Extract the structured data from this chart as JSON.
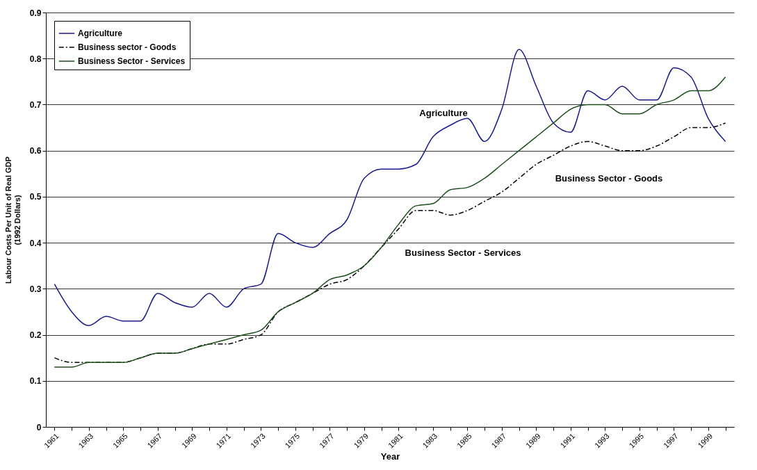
{
  "chart_data": {
    "type": "line",
    "xlabel": "Year",
    "ylabel": "Labour Costs Per Unit of Real GDP\n(1992 Dollars)",
    "categories": [
      "1961",
      null,
      "1963",
      null,
      "1965",
      null,
      "1967",
      null,
      "1969",
      null,
      "1971",
      null,
      "1973",
      null,
      "1975",
      null,
      "1977",
      null,
      "1979",
      null,
      "1981",
      null,
      "1983",
      null,
      "1985",
      null,
      "1987",
      null,
      "1989",
      null,
      "1991",
      null,
      "1993",
      null,
      "1995",
      null,
      "1997",
      null,
      "1999",
      null
    ],
    "series": [
      {
        "name": "Agriculture",
        "color": "#1a1a8c",
        "line_style": "solid",
        "values": [
          0.31,
          0.25,
          0.22,
          0.24,
          0.23,
          0.23,
          0.29,
          0.27,
          0.26,
          0.29,
          0.26,
          0.3,
          0.31,
          0.42,
          0.4,
          0.39,
          0.42,
          0.45,
          0.54,
          0.56,
          0.56,
          0.57,
          0.63,
          0.655,
          0.67,
          0.62,
          0.69,
          0.82,
          0.74,
          0.66,
          0.64,
          0.73,
          0.71,
          0.74,
          0.71,
          0.71,
          0.78,
          0.76,
          0.67,
          0.62
        ]
      },
      {
        "name": "Business sector - Goods",
        "color": "#000000",
        "line_style": "dashed",
        "values": [
          0.15,
          0.14,
          0.14,
          0.14,
          0.14,
          0.15,
          0.16,
          0.16,
          0.17,
          0.18,
          0.18,
          0.19,
          0.2,
          0.25,
          0.27,
          0.29,
          0.31,
          0.32,
          0.35,
          0.39,
          0.43,
          0.47,
          0.47,
          0.46,
          0.47,
          0.49,
          0.51,
          0.54,
          0.57,
          0.59,
          0.61,
          0.62,
          0.61,
          0.6,
          0.6,
          0.61,
          0.63,
          0.65,
          0.65,
          0.66
        ]
      },
      {
        "name": "Business Sector - Services",
        "color": "#1e4d1e",
        "line_style": "solid",
        "values": [
          0.13,
          0.13,
          0.14,
          0.14,
          0.14,
          0.15,
          0.16,
          0.16,
          0.17,
          0.18,
          0.19,
          0.2,
          0.21,
          0.25,
          0.27,
          0.29,
          0.32,
          0.33,
          0.35,
          0.39,
          0.44,
          0.48,
          0.485,
          0.515,
          0.52,
          0.54,
          0.57,
          0.6,
          0.63,
          0.66,
          0.69,
          0.7,
          0.7,
          0.68,
          0.68,
          0.7,
          0.71,
          0.73,
          0.73,
          0.76
        ]
      }
    ],
    "ylim": [
      0,
      0.9
    ],
    "yticks": [
      0,
      0.1,
      0.2,
      0.3,
      0.4,
      0.5,
      0.6,
      0.7,
      0.8,
      0.9
    ],
    "grid": "y",
    "legend": "top left",
    "marker": "none",
    "annotations": [
      "Agriculture",
      "Business Sector - Goods",
      "Business Sector - Services"
    ]
  }
}
